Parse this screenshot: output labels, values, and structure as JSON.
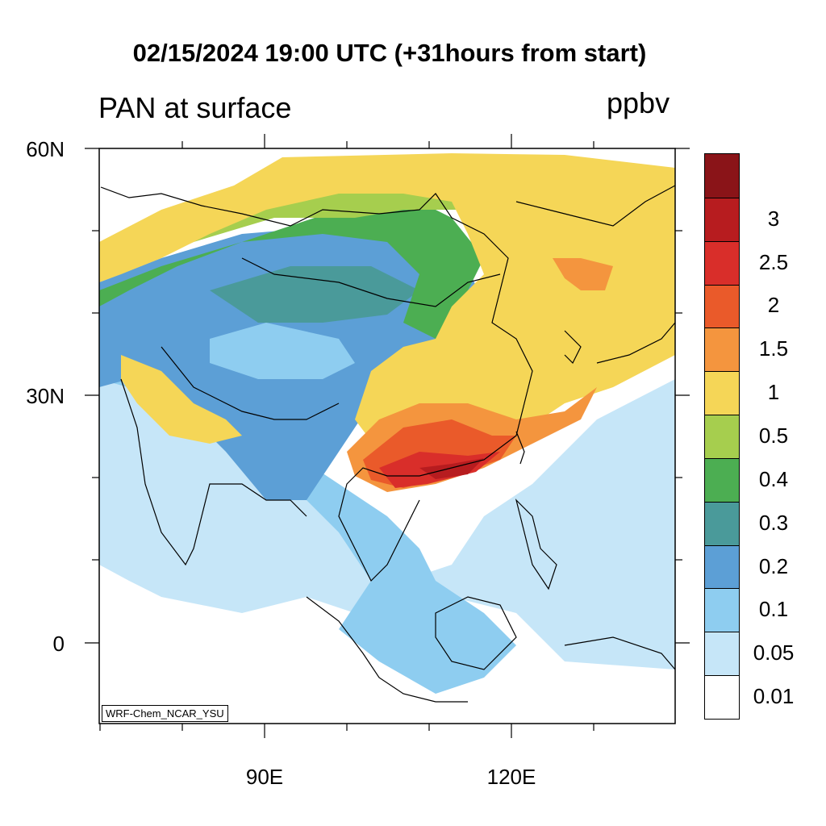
{
  "title": "02/15/2024 19:00 UTC (+31hours from start)",
  "variable_label": "PAN at surface",
  "unit": "ppbv",
  "model_tag": "WRF-Chem_NCAR_YSU",
  "axes": {
    "lat_ticks": [
      "60N",
      "30N",
      "0"
    ],
    "lon_ticks": [
      "90E",
      "120E"
    ]
  },
  "colorbar": {
    "levels": [
      "0.01",
      "0.05",
      "0.1",
      "0.2",
      "0.3",
      "0.4",
      "0.5",
      "1",
      "1.5",
      "2",
      "2.5",
      "3"
    ],
    "colors": [
      "#ffffff",
      "#c6e6f8",
      "#8ecdf0",
      "#5c9fd6",
      "#4a9a9a",
      "#4cae52",
      "#a6ce4e",
      "#f5d657",
      "#f4953e",
      "#ea5a2a",
      "#d92e2a",
      "#b71c1f",
      "#8a1418"
    ]
  }
}
